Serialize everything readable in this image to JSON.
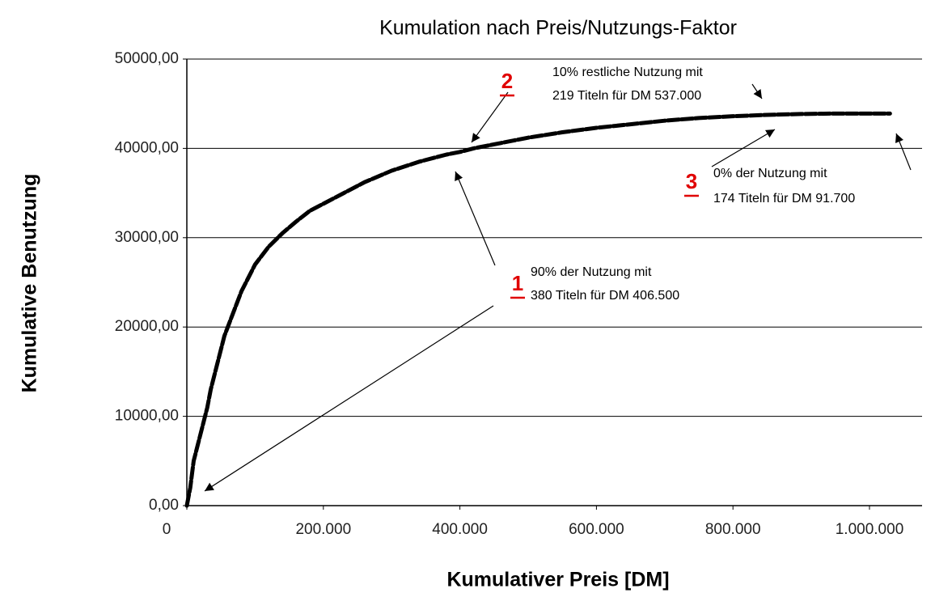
{
  "chart_data": {
    "type": "line",
    "title": "Kumulation nach Preis/Nutzungs-Faktor",
    "x_label": "Kumulativer Preis [DM]",
    "y_label": "Kumulative Benutzung",
    "x": [
      0,
      5000,
      10000,
      20000,
      30000,
      35000,
      45000,
      55000,
      65000,
      80000,
      100000,
      120000,
      140000,
      160000,
      180000,
      200000,
      230000,
      260000,
      300000,
      340000,
      380000,
      400000,
      420000,
      460000,
      500000,
      550000,
      600000,
      650000,
      700000,
      750000,
      800000,
      850000,
      900000,
      950000,
      1000000,
      1030000
    ],
    "series": [
      {
        "name": "Kumulative Benutzung",
        "color": "#000000",
        "values": [
          0,
          2000,
          5000,
          8000,
          11000,
          13000,
          16000,
          19000,
          21000,
          24000,
          27000,
          29000,
          30500,
          31800,
          33000,
          33800,
          35000,
          36200,
          37500,
          38500,
          39300,
          39600,
          40000,
          40600,
          41200,
          41800,
          42300,
          42700,
          43100,
          43400,
          43600,
          43750,
          43850,
          43900,
          43900,
          43900
        ]
      }
    ],
    "xlim": [
      0,
      1077000
    ],
    "ylim": [
      0,
      50000
    ],
    "xticks": [
      0,
      {
        "value": 200000,
        "label": "200.000"
      },
      {
        "value": 400000,
        "label": "400.000"
      },
      {
        "value": 600000,
        "label": "600.000"
      },
      {
        "value": 800000,
        "label": "800.000"
      },
      {
        "value": 1000000,
        "label": "1.000.000"
      }
    ],
    "yticks": [
      {
        "value": 0,
        "label": "0,00"
      },
      {
        "value": 10000,
        "label": "10000,00"
      },
      {
        "value": 20000,
        "label": "20000,00"
      },
      {
        "value": 30000,
        "label": "30000,00"
      },
      {
        "value": 40000,
        "label": "40000,00"
      },
      {
        "value": 50000,
        "label": "50000,00"
      }
    ],
    "grid": true,
    "annotations": [
      {
        "marker": "1",
        "lines": [
          "90% der Nutzung mit",
          "380 Titeln für DM 406.500"
        ]
      },
      {
        "marker": "2",
        "lines": [
          "10% restliche Nutzung mit",
          "219 Titeln für DM 537.000"
        ]
      },
      {
        "marker": "3",
        "lines": [
          "0% der Nutzung mit",
          "174 Titeln für DM 91.700"
        ]
      }
    ]
  }
}
